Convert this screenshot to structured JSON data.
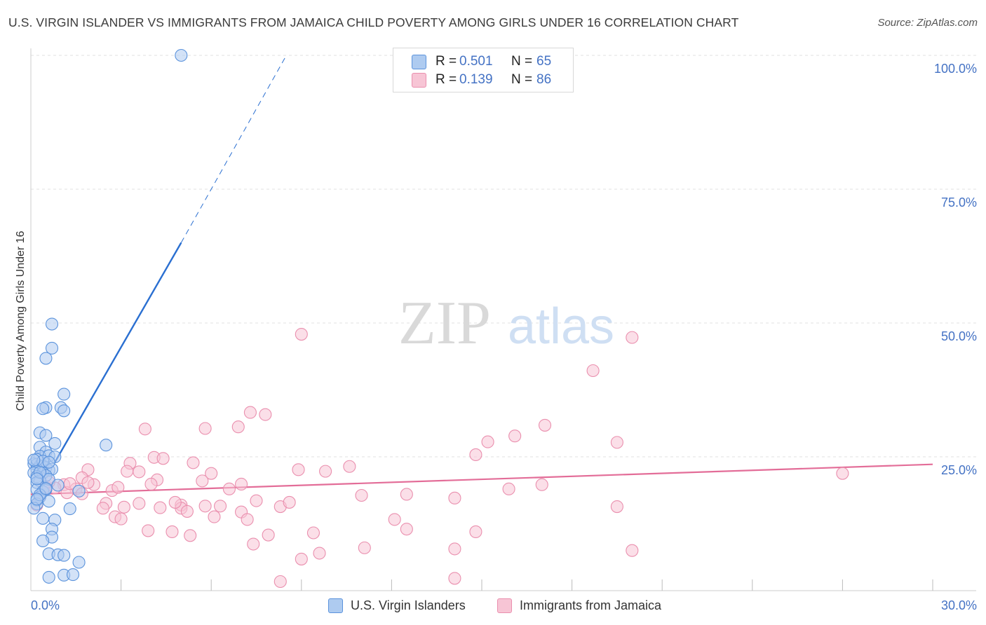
{
  "header": {
    "title": "U.S. VIRGIN ISLANDER VS IMMIGRANTS FROM JAMAICA CHILD POVERTY AMONG GIRLS UNDER 16 CORRELATION CHART",
    "source": "Source: ZipAtlas.com"
  },
  "watermark": {
    "zip": "ZIP",
    "atlas": "atlas"
  },
  "colors": {
    "blue_fill": "#aecbf0",
    "blue_stroke": "#5b93dc",
    "blue_line": "#2a6fd1",
    "pink_fill": "#f7c5d5",
    "pink_stroke": "#ea8fae",
    "pink_line": "#e36d98",
    "axis_label": "#4472c4",
    "grid": "#e2e2e2"
  },
  "legend_top": [
    {
      "r_label": "R =",
      "r_value": "0.501",
      "n_label": "N =",
      "n_value": "65",
      "color": "blue"
    },
    {
      "r_label": "R =",
      "r_value": "0.139",
      "n_label": "N =",
      "n_value": "86",
      "color": "pink"
    }
  ],
  "legend_bottom": [
    "U.S. Virgin Islanders",
    "Immigrants from Jamaica"
  ],
  "chart_data": {
    "type": "scatter",
    "title": "U.S. VIRGIN ISLANDER VS IMMIGRANTS FROM JAMAICA CHILD POVERTY AMONG GIRLS UNDER 16 CORRELATION CHART",
    "xlabel": "",
    "ylabel": "Child Poverty Among Girls Under 16",
    "xlim": [
      0,
      30
    ],
    "ylim": [
      0,
      100
    ],
    "x_tick_labels": [
      "0.0%",
      "30.0%"
    ],
    "y_tick_labels": [
      "100.0%",
      "75.0%",
      "50.0%",
      "25.0%"
    ],
    "y_ticks": [
      100,
      75,
      50,
      25
    ],
    "grid": true,
    "legend_position": "top-center",
    "series": [
      {
        "name": "U.S. Virgin Islanders",
        "color": "blue",
        "r": 0.501,
        "n": 65,
        "trend": {
          "x": [
            0.8,
            5.0
          ],
          "y": [
            24.0,
            65.0
          ],
          "dashed_to": {
            "x": 8.5,
            "y": 100.0
          }
        },
        "points": [
          [
            5.0,
            100.0
          ],
          [
            0.7,
            49.8
          ],
          [
            0.7,
            45.3
          ],
          [
            0.5,
            43.4
          ],
          [
            1.1,
            36.7
          ],
          [
            0.5,
            34.2
          ],
          [
            0.4,
            34.0
          ],
          [
            1.0,
            34.2
          ],
          [
            1.1,
            33.6
          ],
          [
            2.5,
            27.2
          ],
          [
            0.3,
            29.5
          ],
          [
            0.5,
            29.0
          ],
          [
            0.8,
            27.5
          ],
          [
            0.3,
            26.8
          ],
          [
            0.5,
            25.9
          ],
          [
            0.3,
            25.1
          ],
          [
            0.6,
            25.2
          ],
          [
            0.8,
            25.0
          ],
          [
            0.1,
            23.7
          ],
          [
            0.2,
            23.6
          ],
          [
            0.3,
            23.3
          ],
          [
            0.4,
            23.2
          ],
          [
            0.5,
            23.0
          ],
          [
            0.2,
            22.7
          ],
          [
            0.6,
            22.5
          ],
          [
            0.7,
            22.7
          ],
          [
            0.1,
            22.0
          ],
          [
            0.4,
            22.0
          ],
          [
            0.5,
            21.5
          ],
          [
            0.2,
            21.3
          ],
          [
            0.3,
            20.5
          ],
          [
            0.6,
            20.8
          ],
          [
            0.2,
            20.2
          ],
          [
            0.9,
            19.7
          ],
          [
            0.2,
            18.9
          ],
          [
            0.4,
            18.5
          ],
          [
            0.3,
            17.5
          ],
          [
            0.2,
            16.9
          ],
          [
            0.6,
            16.7
          ],
          [
            0.2,
            16.2
          ],
          [
            0.1,
            15.4
          ],
          [
            1.3,
            15.3
          ],
          [
            0.4,
            13.5
          ],
          [
            0.8,
            13.2
          ],
          [
            0.7,
            11.5
          ],
          [
            0.7,
            10.0
          ],
          [
            0.4,
            9.3
          ],
          [
            0.6,
            6.9
          ],
          [
            0.9,
            6.7
          ],
          [
            1.1,
            6.6
          ],
          [
            1.6,
            5.3
          ],
          [
            0.6,
            2.5
          ],
          [
            1.1,
            2.9
          ],
          [
            1.4,
            3.0
          ],
          [
            0.2,
            24.5
          ],
          [
            0.4,
            24.2
          ],
          [
            0.3,
            22.1
          ],
          [
            0.2,
            20.9
          ],
          [
            0.5,
            18.9
          ],
          [
            0.3,
            17.9
          ],
          [
            0.2,
            17.1
          ],
          [
            0.5,
            19.1
          ],
          [
            0.6,
            24.0
          ],
          [
            1.6,
            18.6
          ],
          [
            0.1,
            24.4
          ]
        ]
      },
      {
        "name": "Immigrants from Jamaica",
        "color": "pink",
        "r": 0.139,
        "n": 86,
        "trend": {
          "x": [
            0.0,
            30.0
          ],
          "y": [
            18.0,
            23.6
          ]
        },
        "points": [
          [
            9.0,
            47.9
          ],
          [
            20.0,
            47.3
          ],
          [
            18.7,
            41.1
          ],
          [
            7.3,
            33.3
          ],
          [
            7.8,
            32.9
          ],
          [
            6.9,
            30.6
          ],
          [
            5.8,
            30.3
          ],
          [
            3.8,
            30.2
          ],
          [
            17.1,
            30.9
          ],
          [
            16.1,
            28.9
          ],
          [
            15.2,
            27.8
          ],
          [
            19.5,
            27.7
          ],
          [
            14.8,
            25.4
          ],
          [
            4.1,
            24.9
          ],
          [
            4.4,
            24.7
          ],
          [
            3.3,
            23.8
          ],
          [
            5.4,
            23.9
          ],
          [
            10.6,
            23.2
          ],
          [
            8.9,
            22.6
          ],
          [
            9.8,
            22.3
          ],
          [
            1.9,
            22.6
          ],
          [
            3.2,
            22.3
          ],
          [
            3.6,
            22.2
          ],
          [
            6.0,
            21.9
          ],
          [
            27.0,
            21.9
          ],
          [
            1.7,
            21.1
          ],
          [
            4.2,
            20.7
          ],
          [
            5.7,
            20.5
          ],
          [
            7.0,
            19.9
          ],
          [
            1.1,
            19.8
          ],
          [
            2.1,
            19.8
          ],
          [
            4.0,
            19.9
          ],
          [
            6.6,
            19.0
          ],
          [
            15.9,
            19.0
          ],
          [
            0.8,
            19.2
          ],
          [
            1.5,
            19.0
          ],
          [
            2.7,
            18.7
          ],
          [
            1.2,
            18.3
          ],
          [
            1.7,
            18.1
          ],
          [
            11.0,
            17.8
          ],
          [
            14.1,
            17.3
          ],
          [
            17.0,
            19.8
          ],
          [
            7.5,
            16.8
          ],
          [
            2.5,
            16.3
          ],
          [
            3.6,
            16.3
          ],
          [
            5.0,
            16.0
          ],
          [
            5.8,
            15.8
          ],
          [
            6.3,
            15.8
          ],
          [
            8.3,
            15.7
          ],
          [
            2.4,
            15.4
          ],
          [
            4.3,
            15.5
          ],
          [
            5.0,
            15.4
          ],
          [
            5.2,
            14.8
          ],
          [
            7.0,
            14.7
          ],
          [
            19.5,
            15.7
          ],
          [
            6.1,
            13.8
          ],
          [
            2.8,
            13.8
          ],
          [
            3.0,
            13.4
          ],
          [
            7.2,
            13.3
          ],
          [
            12.1,
            13.3
          ],
          [
            12.5,
            11.5
          ],
          [
            3.9,
            11.2
          ],
          [
            4.7,
            11.0
          ],
          [
            5.3,
            10.3
          ],
          [
            7.9,
            10.4
          ],
          [
            9.4,
            10.8
          ],
          [
            14.8,
            11.0
          ],
          [
            7.4,
            8.7
          ],
          [
            11.1,
            8.0
          ],
          [
            14.1,
            7.8
          ],
          [
            20.0,
            7.5
          ],
          [
            9.6,
            7.0
          ],
          [
            9.0,
            5.9
          ],
          [
            8.3,
            1.7
          ],
          [
            14.1,
            2.3
          ],
          [
            0.2,
            16.0
          ],
          [
            0.3,
            17.5
          ],
          [
            0.5,
            19.5
          ],
          [
            1.3,
            20.0
          ],
          [
            2.9,
            19.3
          ],
          [
            0.6,
            20.3
          ],
          [
            1.9,
            20.2
          ],
          [
            3.1,
            15.6
          ],
          [
            4.8,
            16.5
          ],
          [
            8.6,
            16.5
          ],
          [
            12.5,
            18.0
          ]
        ]
      }
    ]
  }
}
